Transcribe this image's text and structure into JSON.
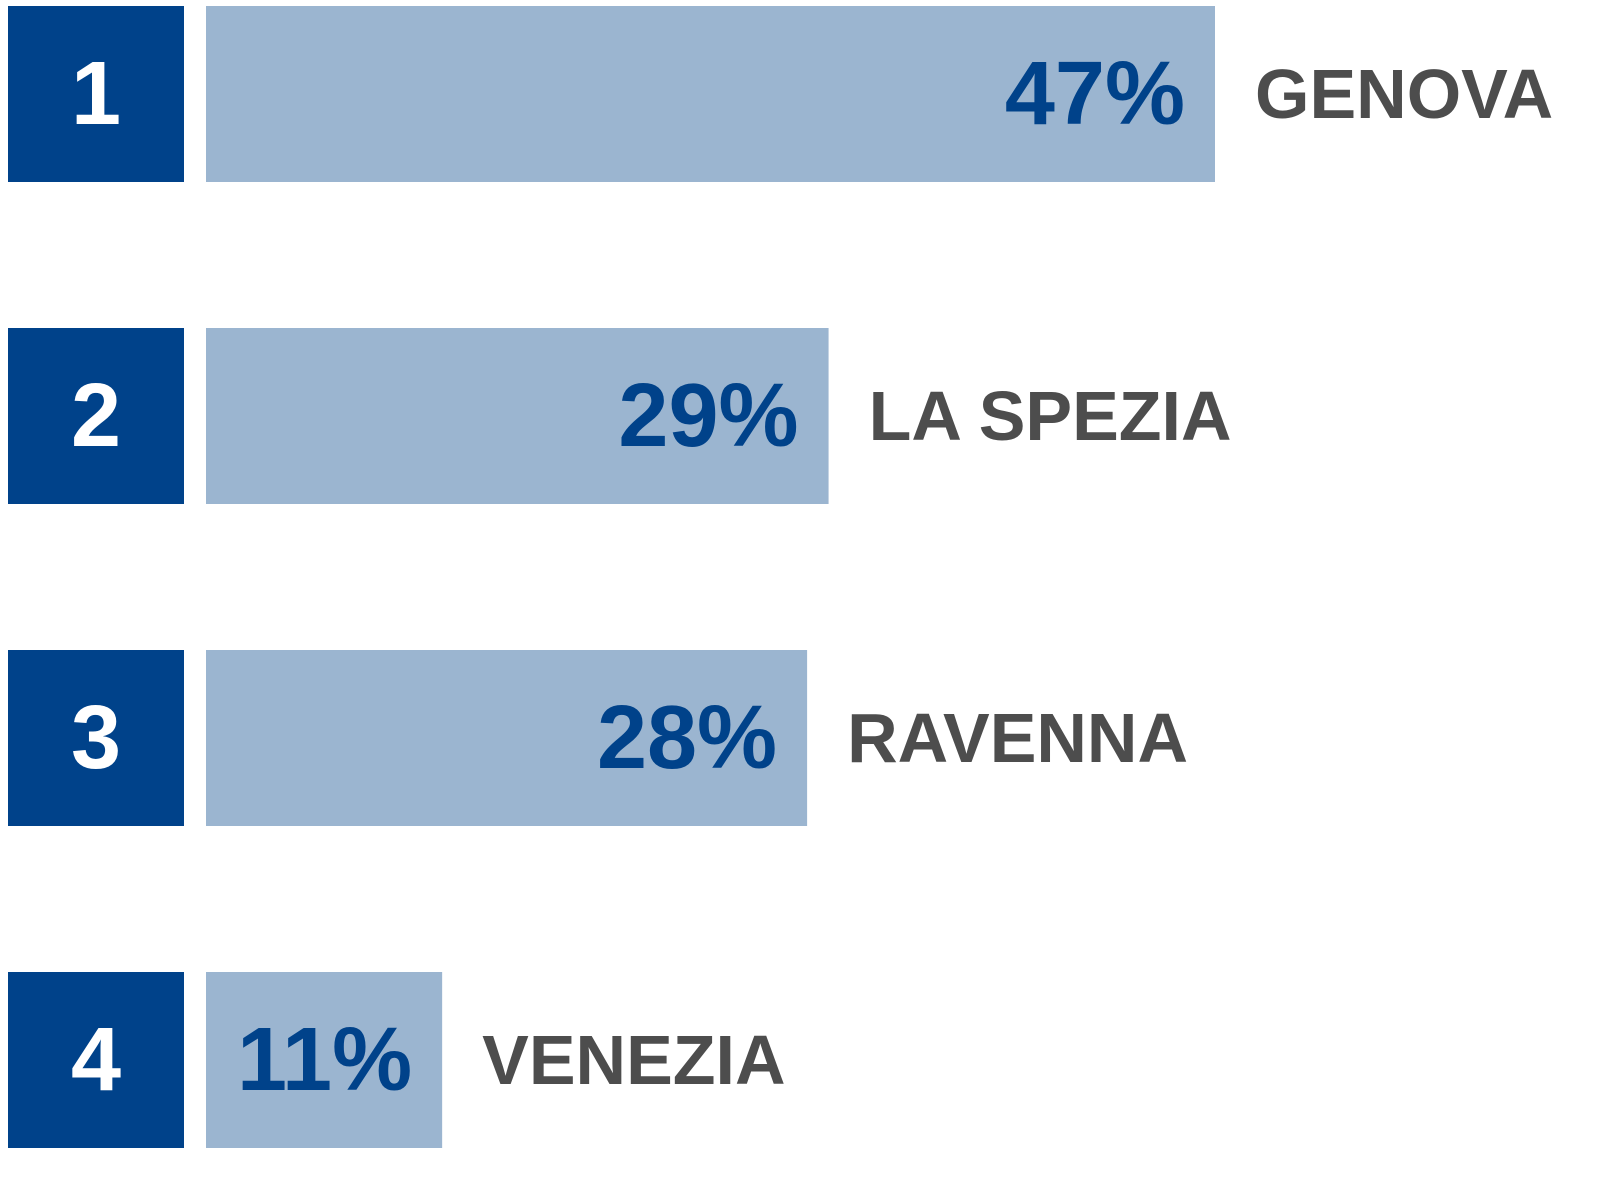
{
  "chart_data": {
    "type": "bar",
    "orientation": "horizontal",
    "ranks": [
      "1",
      "2",
      "3",
      "4"
    ],
    "categories": [
      "GENOVA",
      "LA SPEZIA",
      "RAVENNA",
      "VENEZIA"
    ],
    "values": [
      47,
      29,
      28,
      11
    ],
    "value_labels": [
      "47%",
      "29%",
      "28%",
      "11%"
    ],
    "color": "#9bb5d0",
    "rank_color": "#00428a",
    "value_label_color": "#00428a",
    "category_color": "#4d4d4d"
  }
}
